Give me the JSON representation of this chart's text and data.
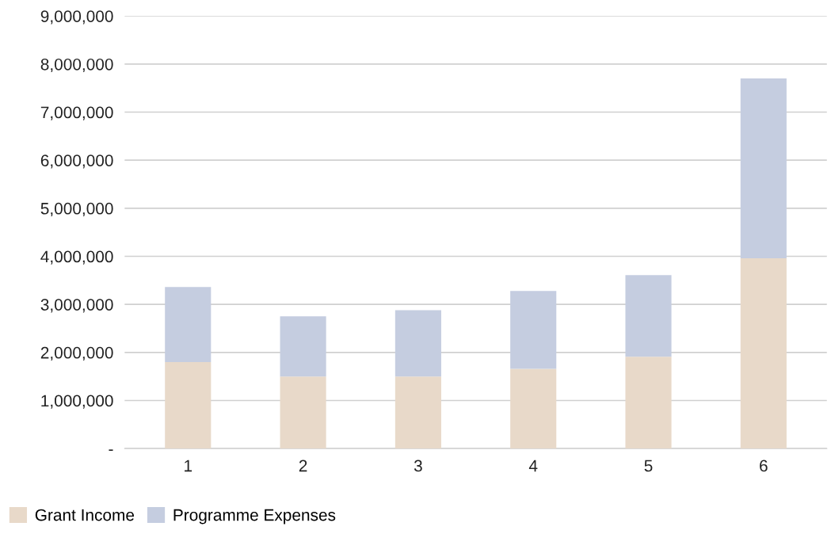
{
  "chart_data": {
    "type": "bar",
    "stacked": true,
    "categories": [
      "1",
      "2",
      "3",
      "4",
      "5",
      "6"
    ],
    "series": [
      {
        "name": "Grant Income",
        "color": "#e8d9c9",
        "values": [
          1800000,
          1500000,
          1500000,
          1660000,
          1910000,
          3960000
        ]
      },
      {
        "name": "Programme Expenses",
        "color": "#c5cde0",
        "values": [
          1560000,
          1250000,
          1380000,
          1620000,
          1700000,
          3740000
        ]
      }
    ],
    "ylim": [
      0,
      9000000
    ],
    "yticks": [
      {
        "value": 0,
        "label": "-"
      },
      {
        "value": 1000000,
        "label": "1,000,000"
      },
      {
        "value": 2000000,
        "label": "2,000,000"
      },
      {
        "value": 3000000,
        "label": "3,000,000"
      },
      {
        "value": 4000000,
        "label": "4,000,000"
      },
      {
        "value": 5000000,
        "label": "5,000,000"
      },
      {
        "value": 6000000,
        "label": "6,000,000"
      },
      {
        "value": 7000000,
        "label": "7,000,000"
      },
      {
        "value": 8000000,
        "label": "8,000,000"
      },
      {
        "value": 9000000,
        "label": "9,000,000"
      }
    ],
    "grid": "y",
    "legend": "bottom left"
  }
}
